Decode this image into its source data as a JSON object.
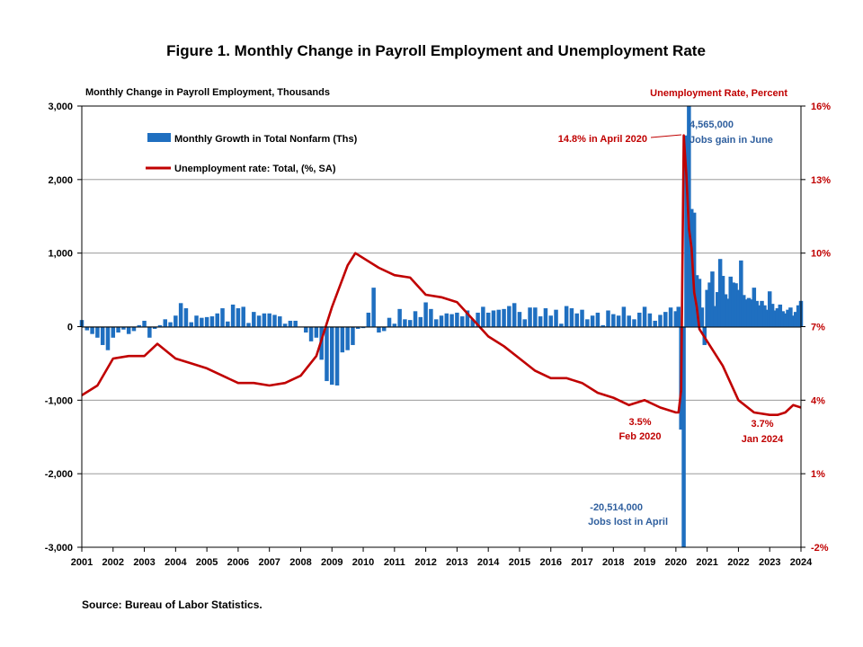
{
  "chart_data": {
    "type": "bar+line",
    "title": "Figure 1. Monthly Change in Payroll Employment and Unemployment Rate",
    "left_axis_label": "Monthly Change in Payroll Employment, Thousands",
    "right_axis_label": "Unemployment Rate, Percent",
    "left_ylim": [
      -3000,
      3000
    ],
    "left_ticks": [
      "3,000",
      "2,000",
      "1,000",
      "0",
      "-1,000",
      "-2,000",
      "-3,000"
    ],
    "right_ylim": [
      -2,
      16
    ],
    "right_ticks": [
      "16%",
      "13%",
      "10%",
      "7%",
      "4%",
      "1%",
      "-2%"
    ],
    "x_ticks": [
      "2001",
      "2002",
      "2003",
      "2004",
      "2005",
      "2006",
      "2007",
      "2008",
      "2009",
      "2010",
      "2011",
      "2012",
      "2013",
      "2014",
      "2015",
      "2016",
      "2017",
      "2018",
      "2019",
      "2020",
      "2021",
      "2022",
      "2023",
      "2024"
    ],
    "x_range": [
      "2001-01",
      "2024-01"
    ],
    "grid": "horizontal",
    "legend_placement": "top-left",
    "series": [
      {
        "name": "Monthly Growth in Total Nonfarm (Ths)",
        "kind": "bar",
        "color": "#1f6fc0",
        "axis": "left",
        "points": [
          [
            "2001-01",
            90
          ],
          [
            "2001-03",
            -50
          ],
          [
            "2001-05",
            -100
          ],
          [
            "2001-07",
            -150
          ],
          [
            "2001-09",
            -250
          ],
          [
            "2001-11",
            -320
          ],
          [
            "2002-01",
            -150
          ],
          [
            "2002-03",
            -80
          ],
          [
            "2002-05",
            -40
          ],
          [
            "2002-07",
            -100
          ],
          [
            "2002-09",
            -60
          ],
          [
            "2002-11",
            20
          ],
          [
            "2003-01",
            80
          ],
          [
            "2003-03",
            -150
          ],
          [
            "2003-05",
            -30
          ],
          [
            "2003-07",
            20
          ],
          [
            "2003-09",
            100
          ],
          [
            "2003-11",
            60
          ],
          [
            "2004-01",
            150
          ],
          [
            "2004-03",
            320
          ],
          [
            "2004-05",
            250
          ],
          [
            "2004-07",
            60
          ],
          [
            "2004-09",
            150
          ],
          [
            "2004-11",
            120
          ],
          [
            "2005-01",
            130
          ],
          [
            "2005-03",
            140
          ],
          [
            "2005-05",
            180
          ],
          [
            "2005-07",
            250
          ],
          [
            "2005-09",
            70
          ],
          [
            "2005-11",
            300
          ],
          [
            "2006-01",
            250
          ],
          [
            "2006-03",
            270
          ],
          [
            "2006-05",
            50
          ],
          [
            "2006-07",
            200
          ],
          [
            "2006-09",
            150
          ],
          [
            "2006-11",
            180
          ],
          [
            "2007-01",
            180
          ],
          [
            "2007-03",
            160
          ],
          [
            "2007-05",
            140
          ],
          [
            "2007-07",
            40
          ],
          [
            "2007-09",
            80
          ],
          [
            "2007-11",
            80
          ],
          [
            "2008-01",
            -10
          ],
          [
            "2008-03",
            -80
          ],
          [
            "2008-05",
            -200
          ],
          [
            "2008-07",
            -150
          ],
          [
            "2008-09",
            -450
          ],
          [
            "2008-11",
            -740
          ],
          [
            "2009-01",
            -790
          ],
          [
            "2009-03",
            -800
          ],
          [
            "2009-05",
            -350
          ],
          [
            "2009-07",
            -320
          ],
          [
            "2009-09",
            -250
          ],
          [
            "2009-11",
            -30
          ],
          [
            "2010-01",
            -20
          ],
          [
            "2010-03",
            190
          ],
          [
            "2010-05",
            530
          ],
          [
            "2010-07",
            -80
          ],
          [
            "2010-09",
            -60
          ],
          [
            "2010-11",
            120
          ],
          [
            "2011-01",
            40
          ],
          [
            "2011-03",
            240
          ],
          [
            "2011-05",
            100
          ],
          [
            "2011-07",
            90
          ],
          [
            "2011-09",
            210
          ],
          [
            "2011-11",
            130
          ],
          [
            "2012-01",
            330
          ],
          [
            "2012-03",
            240
          ],
          [
            "2012-05",
            100
          ],
          [
            "2012-07",
            150
          ],
          [
            "2012-09",
            180
          ],
          [
            "2012-11",
            170
          ],
          [
            "2013-01",
            190
          ],
          [
            "2013-03",
            140
          ],
          [
            "2013-05",
            220
          ],
          [
            "2013-07",
            100
          ],
          [
            "2013-09",
            190
          ],
          [
            "2013-11",
            270
          ],
          [
            "2014-01",
            190
          ],
          [
            "2014-03",
            220
          ],
          [
            "2014-05",
            230
          ],
          [
            "2014-07",
            240
          ],
          [
            "2014-09",
            280
          ],
          [
            "2014-11",
            320
          ],
          [
            "2015-01",
            200
          ],
          [
            "2015-03",
            100
          ],
          [
            "2015-05",
            260
          ],
          [
            "2015-07",
            260
          ],
          [
            "2015-09",
            140
          ],
          [
            "2015-11",
            250
          ],
          [
            "2016-01",
            150
          ],
          [
            "2016-03",
            230
          ],
          [
            "2016-05",
            40
          ],
          [
            "2016-07",
            280
          ],
          [
            "2016-09",
            250
          ],
          [
            "2016-11",
            180
          ],
          [
            "2017-01",
            230
          ],
          [
            "2017-03",
            100
          ],
          [
            "2017-05",
            150
          ],
          [
            "2017-07",
            190
          ],
          [
            "2017-09",
            20
          ],
          [
            "2017-11",
            220
          ],
          [
            "2018-01",
            170
          ],
          [
            "2018-03",
            150
          ],
          [
            "2018-05",
            270
          ],
          [
            "2018-07",
            150
          ],
          [
            "2018-09",
            100
          ],
          [
            "2018-11",
            190
          ],
          [
            "2019-01",
            270
          ],
          [
            "2019-03",
            180
          ],
          [
            "2019-05",
            80
          ],
          [
            "2019-07",
            160
          ],
          [
            "2019-09",
            200
          ],
          [
            "2019-11",
            260
          ],
          [
            "2020-01",
            210
          ],
          [
            "2020-02",
            270
          ],
          [
            "2020-03",
            -1400
          ],
          [
            "2020-04",
            -20514
          ],
          [
            "2020-05",
            2600
          ],
          [
            "2020-06",
            4565
          ],
          [
            "2020-07",
            1600
          ],
          [
            "2020-08",
            1550
          ],
          [
            "2020-09",
            700
          ],
          [
            "2020-10",
            650
          ],
          [
            "2020-11",
            260
          ],
          [
            "2020-12",
            -250
          ],
          [
            "2021-01",
            500
          ],
          [
            "2021-02",
            600
          ],
          [
            "2021-03",
            750
          ],
          [
            "2021-04",
            280
          ],
          [
            "2021-05",
            470
          ],
          [
            "2021-06",
            920
          ],
          [
            "2021-07",
            690
          ],
          [
            "2021-08",
            440
          ],
          [
            "2021-09",
            380
          ],
          [
            "2021-10",
            680
          ],
          [
            "2021-11",
            600
          ],
          [
            "2021-12",
            590
          ],
          [
            "2022-01",
            500
          ],
          [
            "2022-02",
            900
          ],
          [
            "2022-03",
            430
          ],
          [
            "2022-04",
            370
          ],
          [
            "2022-05",
            390
          ],
          [
            "2022-06",
            370
          ],
          [
            "2022-07",
            530
          ],
          [
            "2022-08",
            350
          ],
          [
            "2022-09",
            290
          ],
          [
            "2022-10",
            350
          ],
          [
            "2022-11",
            290
          ],
          [
            "2022-12",
            230
          ],
          [
            "2023-01",
            480
          ],
          [
            "2023-02",
            310
          ],
          [
            "2023-03",
            220
          ],
          [
            "2023-04",
            250
          ],
          [
            "2023-05",
            300
          ],
          [
            "2023-06",
            210
          ],
          [
            "2023-07",
            180
          ],
          [
            "2023-08",
            230
          ],
          [
            "2023-09",
            260
          ],
          [
            "2023-10",
            150
          ],
          [
            "2023-11",
            200
          ],
          [
            "2023-12",
            290
          ],
          [
            "2024-01",
            350
          ]
        ]
      },
      {
        "name": "Unemployment rate: Total, (%, SA)",
        "kind": "line",
        "color": "#c00000",
        "axis": "right",
        "points": [
          [
            "2001-01",
            4.2
          ],
          [
            "2001-07",
            4.6
          ],
          [
            "2002-01",
            5.7
          ],
          [
            "2002-07",
            5.8
          ],
          [
            "2003-01",
            5.8
          ],
          [
            "2003-06",
            6.3
          ],
          [
            "2004-01",
            5.7
          ],
          [
            "2004-07",
            5.5
          ],
          [
            "2005-01",
            5.3
          ],
          [
            "2005-07",
            5.0
          ],
          [
            "2006-01",
            4.7
          ],
          [
            "2006-07",
            4.7
          ],
          [
            "2007-01",
            4.6
          ],
          [
            "2007-07",
            4.7
          ],
          [
            "2008-01",
            5.0
          ],
          [
            "2008-07",
            5.8
          ],
          [
            "2009-01",
            7.8
          ],
          [
            "2009-07",
            9.5
          ],
          [
            "2009-10",
            10.0
          ],
          [
            "2010-07",
            9.4
          ],
          [
            "2011-01",
            9.1
          ],
          [
            "2011-07",
            9.0
          ],
          [
            "2012-01",
            8.3
          ],
          [
            "2012-07",
            8.2
          ],
          [
            "2013-01",
            8.0
          ],
          [
            "2013-07",
            7.3
          ],
          [
            "2014-01",
            6.6
          ],
          [
            "2014-07",
            6.2
          ],
          [
            "2015-01",
            5.7
          ],
          [
            "2015-07",
            5.2
          ],
          [
            "2016-01",
            4.9
          ],
          [
            "2016-07",
            4.9
          ],
          [
            "2017-01",
            4.7
          ],
          [
            "2017-07",
            4.3
          ],
          [
            "2018-01",
            4.1
          ],
          [
            "2018-07",
            3.8
          ],
          [
            "2019-01",
            4.0
          ],
          [
            "2019-07",
            3.7
          ],
          [
            "2020-01",
            3.5
          ],
          [
            "2020-02",
            3.5
          ],
          [
            "2020-03",
            4.4
          ],
          [
            "2020-04",
            14.8
          ],
          [
            "2020-05",
            13.2
          ],
          [
            "2020-06",
            11.0
          ],
          [
            "2020-07",
            10.2
          ],
          [
            "2020-08",
            8.4
          ],
          [
            "2020-09",
            7.8
          ],
          [
            "2020-10",
            6.9
          ],
          [
            "2021-01",
            6.4
          ],
          [
            "2021-07",
            5.4
          ],
          [
            "2022-01",
            4.0
          ],
          [
            "2022-07",
            3.5
          ],
          [
            "2023-01",
            3.4
          ],
          [
            "2023-04",
            3.4
          ],
          [
            "2023-07",
            3.5
          ],
          [
            "2023-10",
            3.8
          ],
          [
            "2024-01",
            3.7
          ]
        ]
      }
    ],
    "annotations": {
      "peak_rate": "14.8% in April 2020",
      "june_gain_value": "4,565,000",
      "june_gain_label": "Jobs gain in June",
      "april_loss_value": "-20,514,000",
      "april_loss_label": "Jobs lost in April",
      "feb2020_rate": "3.5%",
      "feb2020_label": "Feb 2020",
      "jan2024_rate": "3.7%",
      "jan2024_label": "Jan 2024"
    }
  },
  "source": "Source: Bureau of Labor Statistics.",
  "colors": {
    "bars": "#1f6fc0",
    "line": "#c00000",
    "right_axis": "#c00000",
    "annotation_blue": "#2f5f9e"
  }
}
